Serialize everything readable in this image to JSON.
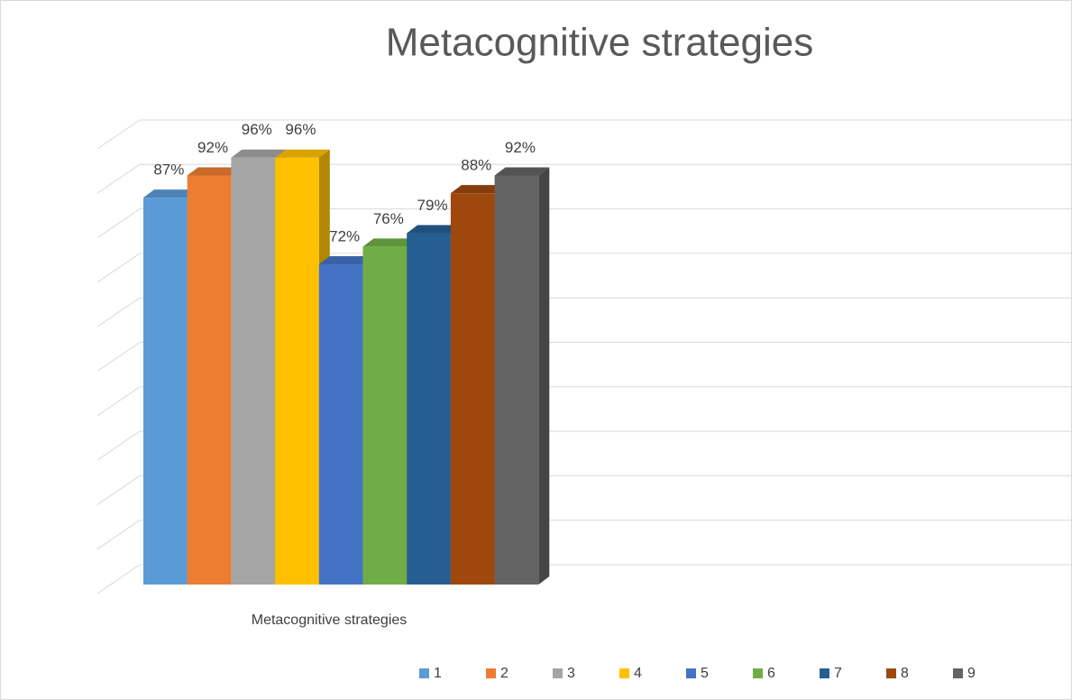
{
  "chart_data": {
    "type": "bar3d",
    "title": "Metacognitive strategies",
    "categories": [
      "Metacognitive strategies"
    ],
    "series": [
      {
        "name": "1",
        "color": "#5b9bd5",
        "values": [
          87
        ],
        "value_labels": [
          "87%"
        ]
      },
      {
        "name": "2",
        "color": "#ed7d31",
        "values": [
          92
        ],
        "value_labels": [
          "92%"
        ]
      },
      {
        "name": "3",
        "color": "#a5a5a5",
        "values": [
          96
        ],
        "value_labels": [
          "96%"
        ]
      },
      {
        "name": "4",
        "color": "#ffc000",
        "values": [
          96
        ],
        "value_labels": [
          "96%"
        ]
      },
      {
        "name": "5",
        "color": "#4472c4",
        "values": [
          72
        ],
        "value_labels": [
          "72%"
        ]
      },
      {
        "name": "6",
        "color": "#70ad47",
        "values": [
          76
        ],
        "value_labels": [
          "76%"
        ]
      },
      {
        "name": "7",
        "color": "#255e91",
        "values": [
          79
        ],
        "value_labels": [
          "79%"
        ]
      },
      {
        "name": "8",
        "color": "#9e480e",
        "values": [
          88
        ],
        "value_labels": [
          "88%"
        ]
      },
      {
        "name": "9",
        "color": "#636363",
        "values": [
          92
        ],
        "value_labels": [
          "92%"
        ]
      }
    ],
    "ylim": [
      0,
      100
    ],
    "yticks": [
      0,
      10,
      20,
      30,
      40,
      50,
      60,
      70,
      80,
      90,
      100
    ],
    "grid": true,
    "legend": "bottom"
  }
}
